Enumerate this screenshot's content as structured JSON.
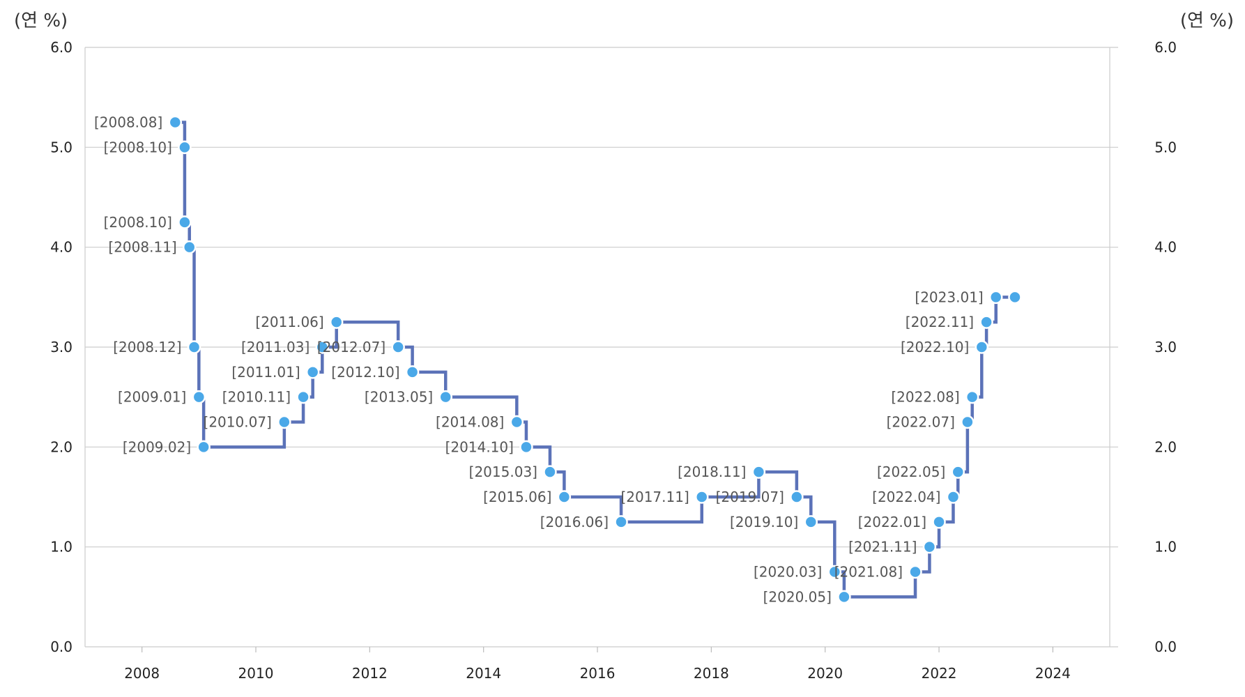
{
  "chart_data": {
    "type": "line",
    "step": true,
    "y_unit_left": "(연 %)",
    "y_unit_right": "(연 %)",
    "ylim": [
      0,
      6
    ],
    "y_ticks": [
      "0.0",
      "1.0",
      "2.0",
      "3.0",
      "4.0",
      "5.0",
      "6.0"
    ],
    "xlim": [
      2007,
      2025
    ],
    "x_ticks": [
      "2008",
      "2010",
      "2012",
      "2014",
      "2016",
      "2018",
      "2020",
      "2022",
      "2024"
    ],
    "grid": "horizontal",
    "line_color": "#5b72b8",
    "marker_color": "#4aa8e8",
    "series": [
      {
        "points": [
          {
            "date": "2008.08",
            "value": 5.25,
            "label": "[2008.08]"
          },
          {
            "date": "2008.10",
            "value": 5.0,
            "label": "[2008.10]"
          },
          {
            "date": "2008.10",
            "value": 4.25,
            "label": "[2008.10]"
          },
          {
            "date": "2008.11",
            "value": 4.0,
            "label": "[2008.11]"
          },
          {
            "date": "2008.12",
            "value": 3.0,
            "label": "[2008.12]"
          },
          {
            "date": "2009.01",
            "value": 2.5,
            "label": "[2009.01]"
          },
          {
            "date": "2009.02",
            "value": 2.0,
            "label": "[2009.02]"
          },
          {
            "date": "2010.07",
            "value": 2.25,
            "label": "[2010.07]"
          },
          {
            "date": "2010.11",
            "value": 2.5,
            "label": "[2010.11]"
          },
          {
            "date": "2011.01",
            "value": 2.75,
            "label": "[2011.01]"
          },
          {
            "date": "2011.03",
            "value": 3.0,
            "label": "[2011.03]"
          },
          {
            "date": "2011.06",
            "value": 3.25,
            "label": "[2011.06]"
          },
          {
            "date": "2012.07",
            "value": 3.0,
            "label": "[2012.07]"
          },
          {
            "date": "2012.10",
            "value": 2.75,
            "label": "[2012.10]"
          },
          {
            "date": "2013.05",
            "value": 2.5,
            "label": "[2013.05]"
          },
          {
            "date": "2014.08",
            "value": 2.25,
            "label": "[2014.08]"
          },
          {
            "date": "2014.10",
            "value": 2.0,
            "label": "[2014.10]"
          },
          {
            "date": "2015.03",
            "value": 1.75,
            "label": "[2015.03]"
          },
          {
            "date": "2015.06",
            "value": 1.5,
            "label": "[2015.06]"
          },
          {
            "date": "2016.06",
            "value": 1.25,
            "label": "[2016.06]"
          },
          {
            "date": "2017.11",
            "value": 1.5,
            "label": "[2017.11]"
          },
          {
            "date": "2018.11",
            "value": 1.75,
            "label": "[2018.11]"
          },
          {
            "date": "2019.07",
            "value": 1.5,
            "label": "[2019.07]"
          },
          {
            "date": "2019.10",
            "value": 1.25,
            "label": "[2019.10]"
          },
          {
            "date": "2020.03",
            "value": 0.75,
            "label": "[2020.03]"
          },
          {
            "date": "2020.05",
            "value": 0.5,
            "label": "[2020.05]"
          },
          {
            "date": "2021.08",
            "value": 0.75,
            "label": "[2021.08]"
          },
          {
            "date": "2021.11",
            "value": 1.0,
            "label": "[2021.11]"
          },
          {
            "date": "2022.01",
            "value": 1.25,
            "label": "[2022.01]"
          },
          {
            "date": "2022.04",
            "value": 1.5,
            "label": "[2022.04]"
          },
          {
            "date": "2022.05",
            "value": 1.75,
            "label": "[2022.05]"
          },
          {
            "date": "2022.07",
            "value": 2.25,
            "label": "[2022.07]"
          },
          {
            "date": "2022.08",
            "value": 2.5,
            "label": "[2022.08]"
          },
          {
            "date": "2022.10",
            "value": 3.0,
            "label": "[2022.10]"
          },
          {
            "date": "2022.11",
            "value": 3.25,
            "label": "[2022.11]"
          },
          {
            "date": "2023.01",
            "value": 3.5,
            "label": "[2023.01]"
          },
          {
            "date": "2023.05",
            "value": 3.5,
            "label": ""
          }
        ]
      }
    ]
  }
}
